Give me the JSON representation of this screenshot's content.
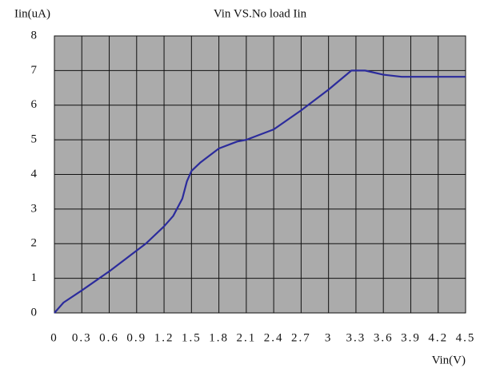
{
  "chart_data": {
    "type": "line",
    "title": "Vin VS.No load Iin",
    "y_label": "Iin(uA)",
    "x_label": "Vin(V)",
    "x": [
      0,
      0.1,
      0.3,
      0.6,
      0.9,
      1.0,
      1.2,
      1.3,
      1.4,
      1.45,
      1.5,
      1.6,
      1.8,
      2.0,
      2.1,
      2.4,
      2.7,
      3.0,
      3.25,
      3.4,
      3.6,
      3.8,
      4.0,
      4.5
    ],
    "series": [
      {
        "name": "Iin",
        "color": "#2b2b9c",
        "values": [
          0,
          0.3,
          0.65,
          1.2,
          1.8,
          2.0,
          2.5,
          2.8,
          3.3,
          3.8,
          4.1,
          4.35,
          4.75,
          4.95,
          5.0,
          5.3,
          5.85,
          6.45,
          7.0,
          7.0,
          6.88,
          6.82,
          6.82,
          6.82
        ]
      }
    ],
    "xlim": [
      0,
      4.5
    ],
    "xticks": [
      0,
      0.3,
      0.6,
      0.9,
      1.2,
      1.5,
      1.8,
      2.1,
      2.4,
      2.7,
      3,
      3.3,
      3.6,
      3.9,
      4.2,
      4.5
    ],
    "ylim": [
      0,
      8
    ],
    "yticks": [
      0,
      1,
      2,
      3,
      4,
      5,
      6,
      7,
      8
    ],
    "grid": true,
    "background": "#ababab"
  }
}
